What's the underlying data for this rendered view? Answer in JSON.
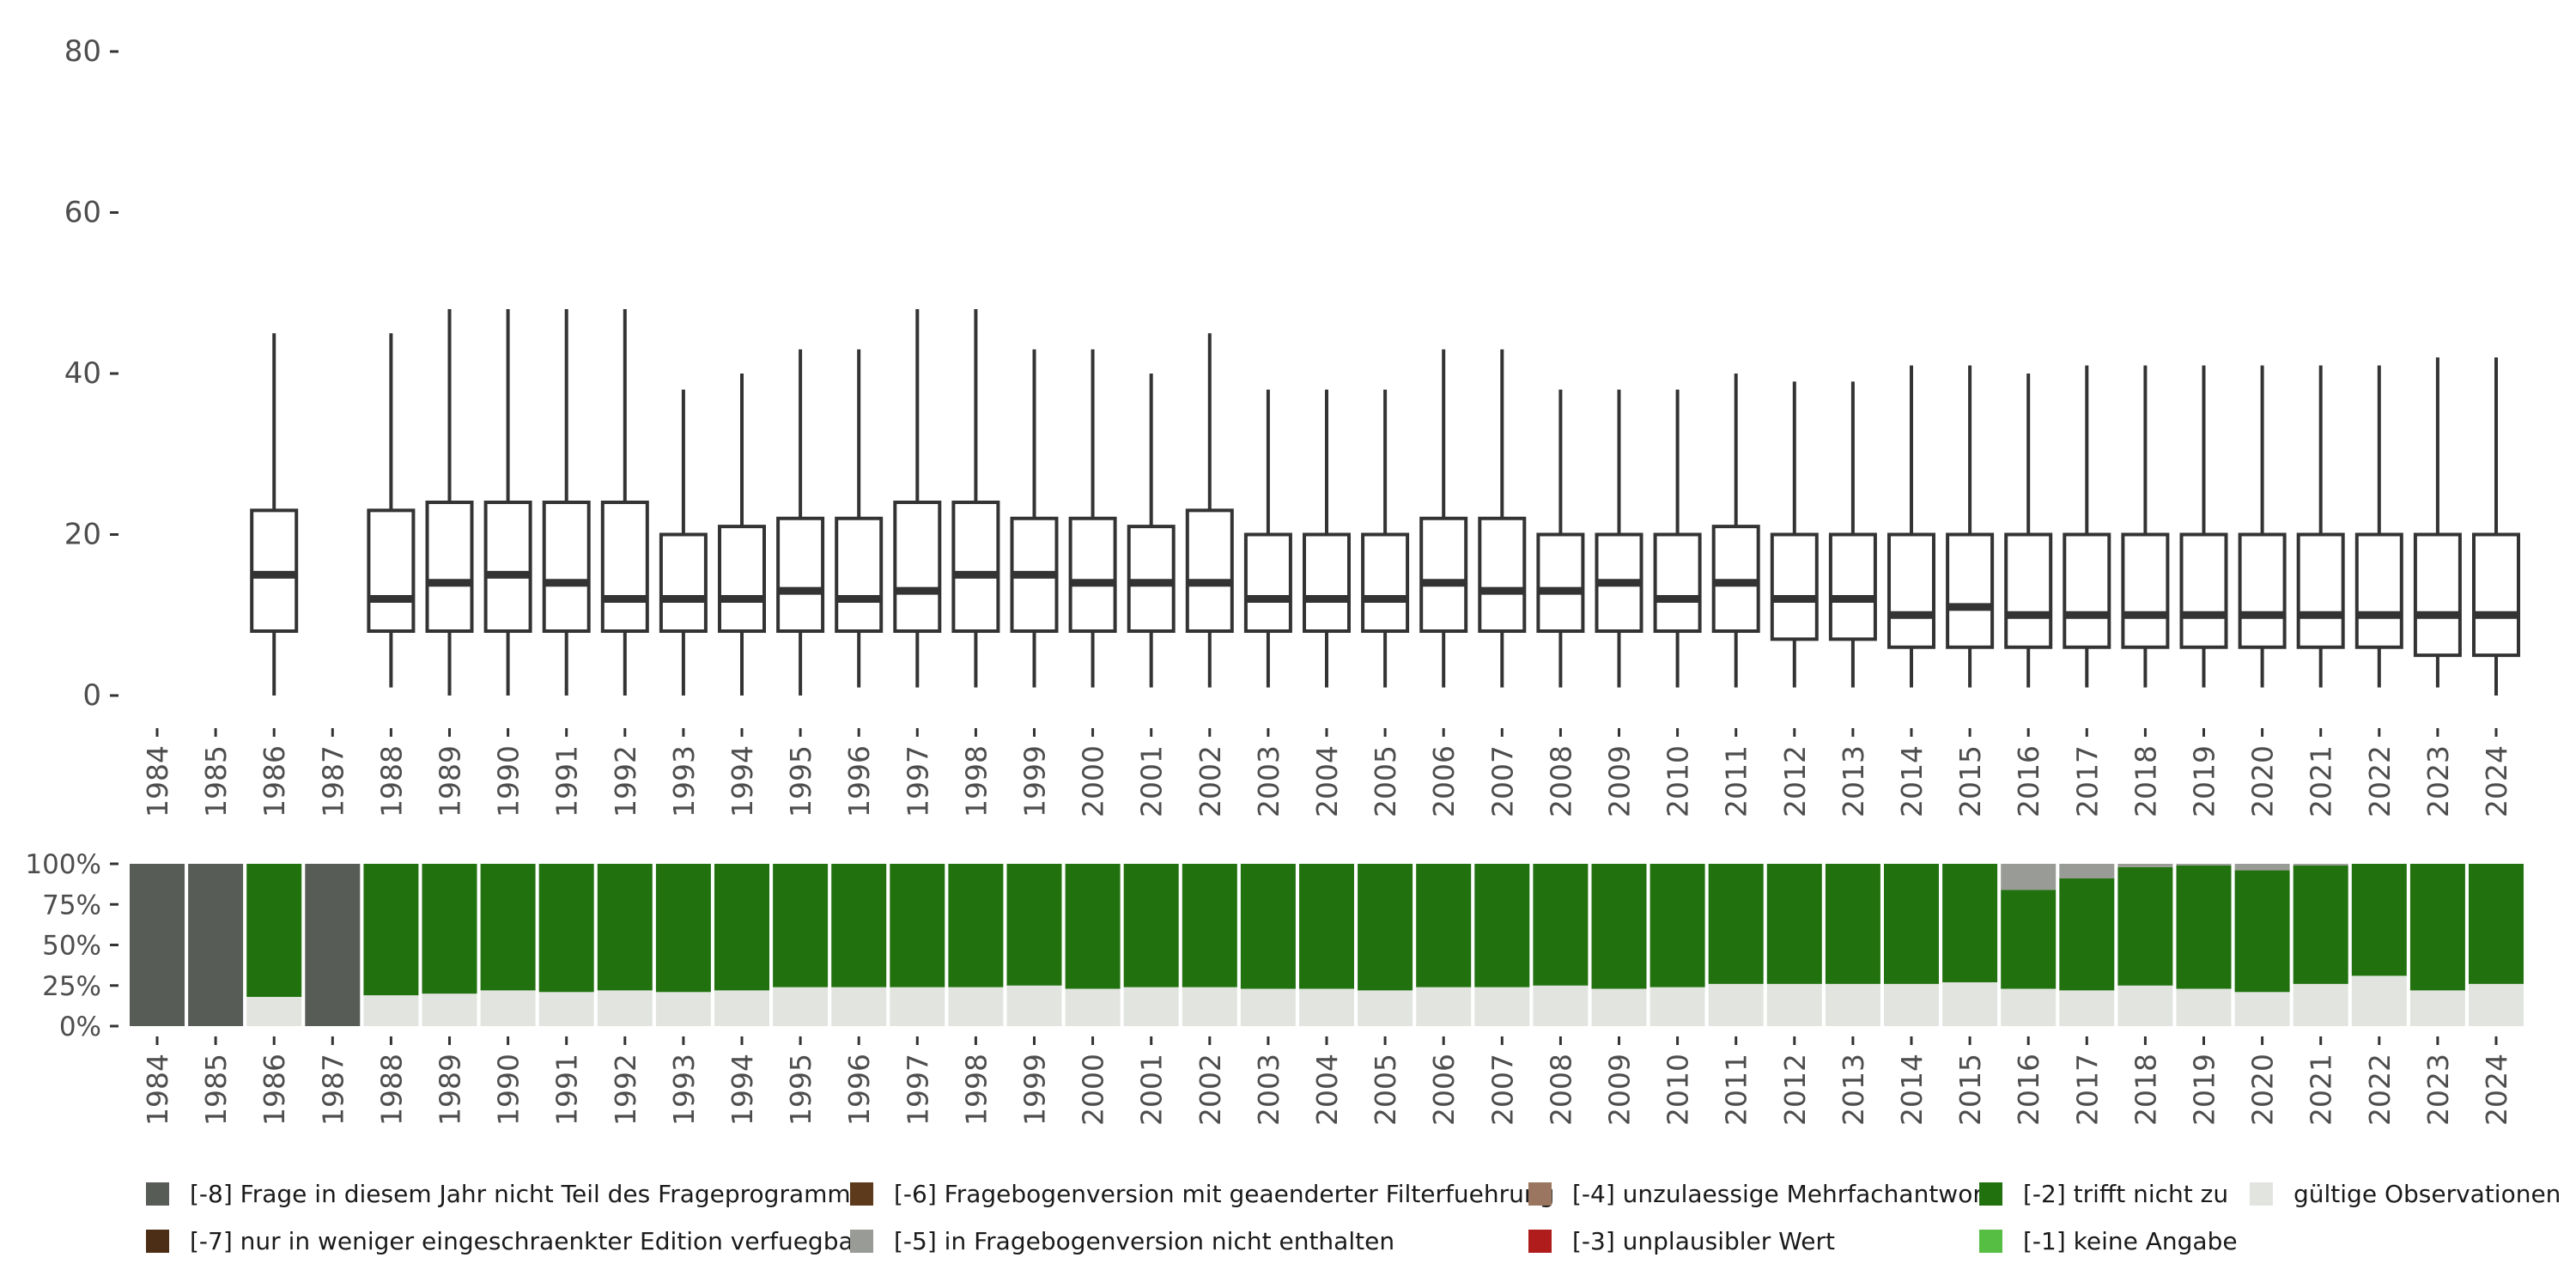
{
  "chart_data": [
    {
      "type": "boxplot",
      "title": "",
      "xlabel": "",
      "ylabel": "",
      "ylim": [
        0,
        80
      ],
      "yticks": [
        0,
        20,
        40,
        60,
        80
      ],
      "ytick_labels": [
        "0",
        "20",
        "40",
        "60",
        "80"
      ],
      "categories": [
        "1984",
        "1985",
        "1986",
        "1987",
        "1988",
        "1989",
        "1990",
        "1991",
        "1992",
        "1993",
        "1994",
        "1995",
        "1996",
        "1997",
        "1998",
        "1999",
        "2000",
        "2001",
        "2002",
        "2003",
        "2004",
        "2005",
        "2006",
        "2007",
        "2008",
        "2009",
        "2010",
        "2011",
        "2012",
        "2013",
        "2014",
        "2015",
        "2016",
        "2017",
        "2018",
        "2019",
        "2020",
        "2021",
        "2022",
        "2023",
        "2024"
      ],
      "boxes": [
        null,
        null,
        {
          "min": 0,
          "q1": 8,
          "median": 15,
          "q3": 23,
          "max": 45
        },
        null,
        {
          "min": 1,
          "q1": 8,
          "median": 12,
          "q3": 23,
          "max": 45
        },
        {
          "min": 0,
          "q1": 8,
          "median": 14,
          "q3": 24,
          "max": 48
        },
        {
          "min": 0,
          "q1": 8,
          "median": 15,
          "q3": 24,
          "max": 48
        },
        {
          "min": 0,
          "q1": 8,
          "median": 14,
          "q3": 24,
          "max": 48
        },
        {
          "min": 0,
          "q1": 8,
          "median": 12,
          "q3": 24,
          "max": 48
        },
        {
          "min": 0,
          "q1": 8,
          "median": 12,
          "q3": 20,
          "max": 38
        },
        {
          "min": 0,
          "q1": 8,
          "median": 12,
          "q3": 21,
          "max": 40
        },
        {
          "min": 0,
          "q1": 8,
          "median": 13,
          "q3": 22,
          "max": 43
        },
        {
          "min": 1,
          "q1": 8,
          "median": 12,
          "q3": 22,
          "max": 43
        },
        {
          "min": 1,
          "q1": 8,
          "median": 13,
          "q3": 24,
          "max": 48
        },
        {
          "min": 1,
          "q1": 8,
          "median": 15,
          "q3": 24,
          "max": 48
        },
        {
          "min": 1,
          "q1": 8,
          "median": 15,
          "q3": 22,
          "max": 43
        },
        {
          "min": 1,
          "q1": 8,
          "median": 14,
          "q3": 22,
          "max": 43
        },
        {
          "min": 1,
          "q1": 8,
          "median": 14,
          "q3": 21,
          "max": 40
        },
        {
          "min": 1,
          "q1": 8,
          "median": 14,
          "q3": 23,
          "max": 45
        },
        {
          "min": 1,
          "q1": 8,
          "median": 12,
          "q3": 20,
          "max": 38
        },
        {
          "min": 1,
          "q1": 8,
          "median": 12,
          "q3": 20,
          "max": 38
        },
        {
          "min": 1,
          "q1": 8,
          "median": 12,
          "q3": 20,
          "max": 38
        },
        {
          "min": 1,
          "q1": 8,
          "median": 14,
          "q3": 22,
          "max": 43
        },
        {
          "min": 1,
          "q1": 8,
          "median": 13,
          "q3": 22,
          "max": 43
        },
        {
          "min": 1,
          "q1": 8,
          "median": 13,
          "q3": 20,
          "max": 38
        },
        {
          "min": 1,
          "q1": 8,
          "median": 14,
          "q3": 20,
          "max": 38
        },
        {
          "min": 1,
          "q1": 8,
          "median": 12,
          "q3": 20,
          "max": 38
        },
        {
          "min": 1,
          "q1": 8,
          "median": 14,
          "q3": 21,
          "max": 40
        },
        {
          "min": 1,
          "q1": 7,
          "median": 12,
          "q3": 20,
          "max": 39
        },
        {
          "min": 1,
          "q1": 7,
          "median": 12,
          "q3": 20,
          "max": 39
        },
        {
          "min": 1,
          "q1": 6,
          "median": 10,
          "q3": 20,
          "max": 41
        },
        {
          "min": 1,
          "q1": 6,
          "median": 11,
          "q3": 20,
          "max": 41
        },
        {
          "min": 1,
          "q1": 6,
          "median": 10,
          "q3": 20,
          "max": 40
        },
        {
          "min": 1,
          "q1": 6,
          "median": 10,
          "q3": 20,
          "max": 41
        },
        {
          "min": 1,
          "q1": 6,
          "median": 10,
          "q3": 20,
          "max": 41
        },
        {
          "min": 1,
          "q1": 6,
          "median": 10,
          "q3": 20,
          "max": 41
        },
        {
          "min": 1,
          "q1": 6,
          "median": 10,
          "q3": 20,
          "max": 41
        },
        {
          "min": 1,
          "q1": 6,
          "median": 10,
          "q3": 20,
          "max": 41
        },
        {
          "min": 1,
          "q1": 6,
          "median": 10,
          "q3": 20,
          "max": 41
        },
        {
          "min": 1,
          "q1": 5,
          "median": 10,
          "q3": 20,
          "max": 42
        },
        {
          "min": 0,
          "q1": 5,
          "median": 10,
          "q3": 20,
          "max": 42
        }
      ]
    },
    {
      "type": "stacked_bar",
      "title": "",
      "xlabel": "",
      "ylabel": "",
      "ylim": [
        0,
        1
      ],
      "yticks": [
        0,
        0.25,
        0.5,
        0.75,
        1
      ],
      "ytick_labels": [
        "0%",
        "25%",
        "50%",
        "75%",
        "100%"
      ],
      "categories": [
        "1984",
        "1985",
        "1986",
        "1987",
        "1988",
        "1989",
        "1990",
        "1991",
        "1992",
        "1993",
        "1994",
        "1995",
        "1996",
        "1997",
        "1998",
        "1999",
        "2000",
        "2001",
        "2002",
        "2003",
        "2004",
        "2005",
        "2006",
        "2007",
        "2008",
        "2009",
        "2010",
        "2011",
        "2012",
        "2013",
        "2014",
        "2015",
        "2016",
        "2017",
        "2018",
        "2019",
        "2020",
        "2021",
        "2022",
        "2023",
        "2024"
      ],
      "series": [
        {
          "name": "gültige Observationen",
          "color": "#e2e5df",
          "values": [
            0,
            0,
            0.18,
            0,
            0.19,
            0.2,
            0.22,
            0.21,
            0.22,
            0.21,
            0.22,
            0.24,
            0.24,
            0.24,
            0.24,
            0.25,
            0.23,
            0.24,
            0.24,
            0.23,
            0.23,
            0.22,
            0.24,
            0.24,
            0.25,
            0.23,
            0.24,
            0.26,
            0.26,
            0.26,
            0.26,
            0.27,
            0.23,
            0.22,
            0.25,
            0.23,
            0.21,
            0.26,
            0.31,
            0.22,
            0.26
          ]
        },
        {
          "name": "[-2] trifft nicht zu",
          "color": "#21710f",
          "values": [
            0,
            0,
            0.82,
            0,
            0.81,
            0.8,
            0.78,
            0.79,
            0.78,
            0.79,
            0.78,
            0.76,
            0.76,
            0.76,
            0.76,
            0.75,
            0.77,
            0.76,
            0.76,
            0.77,
            0.77,
            0.78,
            0.76,
            0.76,
            0.75,
            0.77,
            0.76,
            0.74,
            0.74,
            0.74,
            0.74,
            0.73,
            0.61,
            0.69,
            0.73,
            0.76,
            0.75,
            0.73,
            0.69,
            0.78,
            0.74
          ]
        },
        {
          "name": "[-5] in Fragebogenversion nicht enthalten",
          "color": "#999b96",
          "values": [
            0,
            0,
            0,
            0,
            0,
            0,
            0,
            0,
            0,
            0,
            0,
            0,
            0,
            0,
            0,
            0,
            0,
            0,
            0,
            0,
            0,
            0,
            0,
            0,
            0,
            0,
            0,
            0,
            0,
            0,
            0,
            0,
            0.16,
            0.09,
            0.02,
            0.01,
            0.04,
            0.01,
            0,
            0,
            0
          ]
        },
        {
          "name": "[-8] Frage in diesem Jahr nicht Teil des Frageprogramms",
          "color": "#575c57",
          "values": [
            1,
            1,
            0,
            1,
            0,
            0,
            0,
            0,
            0,
            0,
            0,
            0,
            0,
            0,
            0,
            0,
            0,
            0,
            0,
            0,
            0,
            0,
            0,
            0,
            0,
            0,
            0,
            0,
            0,
            0,
            0,
            0,
            0,
            0,
            0,
            0,
            0,
            0,
            0,
            0,
            0
          ]
        }
      ]
    }
  ],
  "legend": {
    "items": [
      {
        "label": "[-8] Frage in diesem Jahr nicht Teil des Frageprogramms",
        "color": "#575c57"
      },
      {
        "label": "[-6] Fragebogenversion mit geaenderter Filterfuehrung",
        "color": "#5e3a1c"
      },
      {
        "label": "[-4] unzulaessige Mehrfachantwort",
        "color": "#9a7560"
      },
      {
        "label": "[-2] trifft nicht zu",
        "color": "#21710f"
      },
      {
        "label": "gültige Observationen",
        "color": "#e2e5df"
      },
      {
        "label": "[-7] nur in weniger eingeschraenkter Edition verfuegbar",
        "color": "#4b2e15"
      },
      {
        "label": "[-5] in Fragebogenversion nicht enthalten",
        "color": "#999b96"
      },
      {
        "label": "[-3] unplausibler Wert",
        "color": "#b01c1c"
      },
      {
        "label": "[-1] keine Angabe",
        "color": "#55be43"
      }
    ]
  }
}
